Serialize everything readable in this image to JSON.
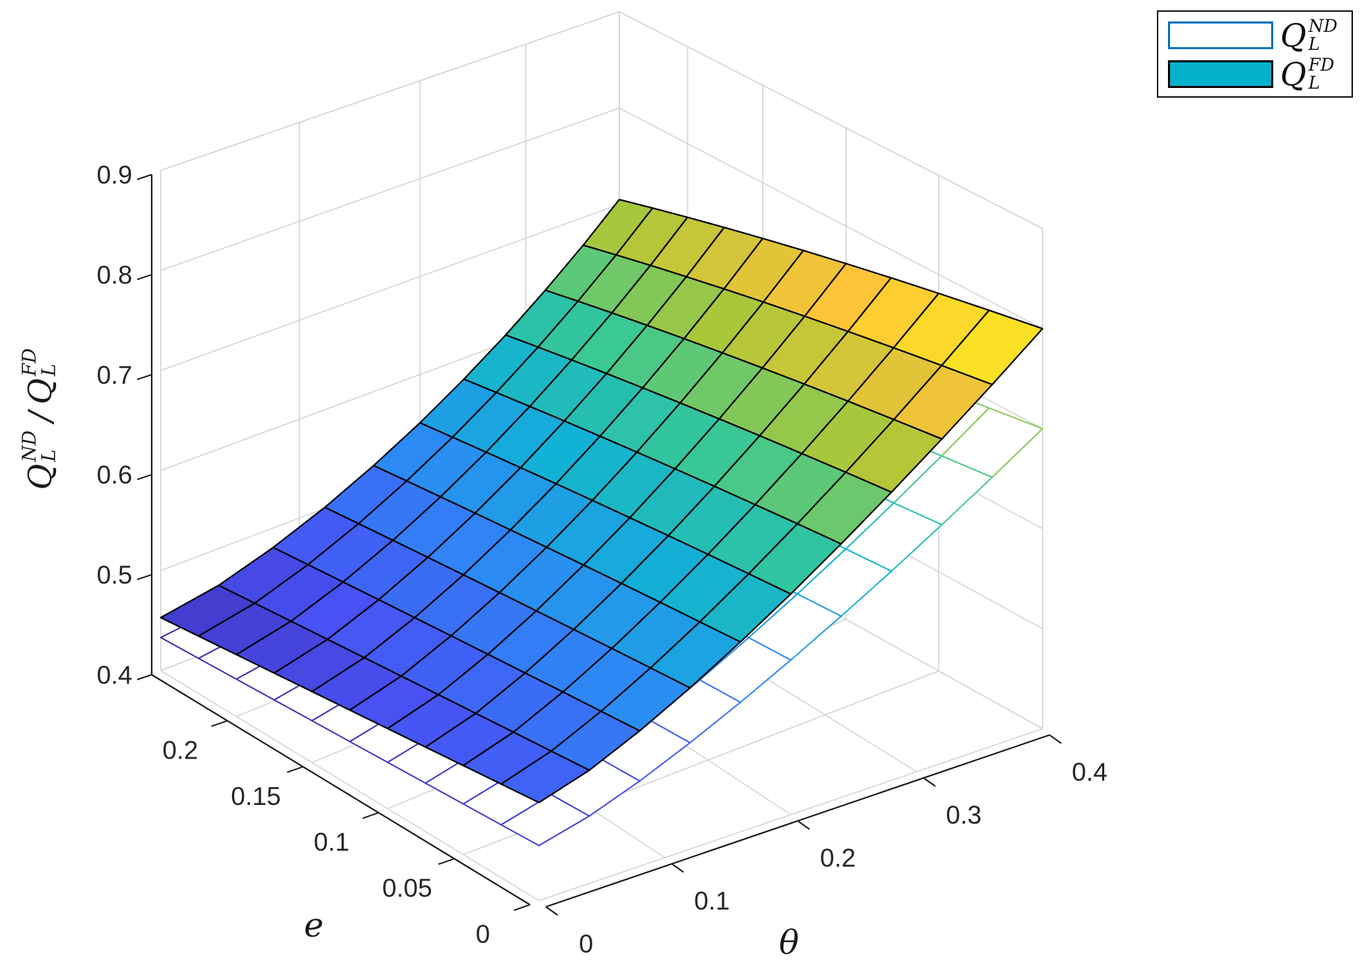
{
  "chart_data": {
    "type": "surface3d",
    "title": "",
    "projection": "3d-perspective",
    "grid_on": true,
    "x_axis": {
      "name": "theta",
      "label": "θ",
      "range": [
        0,
        0.4
      ],
      "tick_values": [
        0,
        0.1,
        0.2,
        0.3,
        0.4
      ],
      "tick_labels": [
        "0",
        "0.1",
        "0.2",
        "0.3",
        "0.4"
      ]
    },
    "y_axis": {
      "name": "e",
      "label": "e",
      "range": [
        0,
        0.25
      ],
      "tick_values": [
        0,
        0.05,
        0.1,
        0.15,
        0.2
      ],
      "tick_labels": [
        "0",
        "0.05",
        "0.1",
        "0.15",
        "0.2"
      ]
    },
    "z_axis": {
      "label": "Q_L^ND / Q_L^FD",
      "range": [
        0.4,
        0.9
      ],
      "tick_values": [
        0.4,
        0.5,
        0.6,
        0.7,
        0.8,
        0.9
      ],
      "tick_labels": [
        "0.4",
        "0.5",
        "0.6",
        "0.7",
        "0.8",
        "0.9"
      ]
    },
    "theta_grid": [
      0,
      0.04,
      0.08,
      0.12,
      0.16,
      0.2,
      0.24,
      0.28,
      0.32,
      0.36,
      0.4
    ],
    "e_grid": [
      0,
      0.025,
      0.05,
      0.075,
      0.1,
      0.125,
      0.15,
      0.175,
      0.2,
      0.225,
      0.25
    ],
    "color_limits": [
      0.433,
      0.8
    ],
    "colormap": {
      "name": "parula",
      "stops": [
        "#3e26a8",
        "#4852f4",
        "#2e87f7",
        "#12b1d6",
        "#37c897",
        "#abc739",
        "#fec338",
        "#f9fb15"
      ]
    },
    "z_value_order": "z[i][j] = value at theta_grid[i], e_grid[j]",
    "series": [
      {
        "name": "Q_L^ND",
        "render": "white-faces-colormap-edges",
        "z": [
          [
            0.455,
            0.4528,
            0.4506,
            0.4484,
            0.4462,
            0.444,
            0.4418,
            0.4396,
            0.4374,
            0.4352,
            0.433
          ],
          [
            0.4673,
            0.4646,
            0.4618,
            0.4591,
            0.4563,
            0.4536,
            0.4508,
            0.4481,
            0.4453,
            0.4426,
            0.4398
          ],
          [
            0.4852,
            0.4819,
            0.4786,
            0.4753,
            0.472,
            0.4687,
            0.4654,
            0.4621,
            0.4588,
            0.4555,
            0.4522
          ],
          [
            0.5062,
            0.5024,
            0.4985,
            0.4947,
            0.4908,
            0.487,
            0.4831,
            0.4793,
            0.4754,
            0.4716,
            0.4677
          ],
          [
            0.5295,
            0.5251,
            0.5207,
            0.5163,
            0.5119,
            0.5075,
            0.5031,
            0.4987,
            0.4943,
            0.4899,
            0.4855
          ],
          [
            0.5545,
            0.5496,
            0.5446,
            0.5397,
            0.5347,
            0.5298,
            0.5248,
            0.5199,
            0.5149,
            0.51,
            0.505
          ],
          [
            0.5812,
            0.5757,
            0.5702,
            0.5647,
            0.5592,
            0.5537,
            0.5482,
            0.5427,
            0.5372,
            0.5317,
            0.5262
          ],
          [
            0.6091,
            0.6031,
            0.597,
            0.591,
            0.5849,
            0.5789,
            0.5728,
            0.5668,
            0.5607,
            0.5547,
            0.5486
          ],
          [
            0.6383,
            0.6317,
            0.6251,
            0.6185,
            0.6119,
            0.6053,
            0.5987,
            0.5921,
            0.5855,
            0.5789,
            0.5723
          ],
          [
            0.6686,
            0.6615,
            0.6543,
            0.6472,
            0.64,
            0.6329,
            0.6257,
            0.6186,
            0.6114,
            0.6043,
            0.5971
          ],
          [
            0.7,
            0.6923,
            0.6846,
            0.6769,
            0.6692,
            0.6615,
            0.6538,
            0.6461,
            0.6384,
            0.6307,
            0.623
          ]
        ]
      },
      {
        "name": "Q_L^FD",
        "render": "colormap-faces-black-edges",
        "z": [
          [
            0.498,
            0.4935,
            0.489,
            0.4845,
            0.48,
            0.4755,
            0.471,
            0.4665,
            0.462,
            0.4575,
            0.453
          ],
          [
            0.5131,
            0.5081,
            0.5031,
            0.4981,
            0.4931,
            0.4881,
            0.4831,
            0.4781,
            0.4731,
            0.4681,
            0.4631
          ],
          [
            0.5353,
            0.5298,
            0.5243,
            0.5188,
            0.5133,
            0.5078,
            0.5023,
            0.4968,
            0.4913,
            0.4858,
            0.4803
          ],
          [
            0.5611,
            0.5551,
            0.5491,
            0.5431,
            0.5371,
            0.5311,
            0.5251,
            0.5191,
            0.5131,
            0.5071,
            0.5011
          ],
          [
            0.5898,
            0.5833,
            0.5768,
            0.5703,
            0.5638,
            0.5573,
            0.5508,
            0.5443,
            0.5378,
            0.5313,
            0.5248
          ],
          [
            0.6206,
            0.6136,
            0.6066,
            0.5996,
            0.5926,
            0.5856,
            0.5786,
            0.5716,
            0.5646,
            0.5576,
            0.5506
          ],
          [
            0.6535,
            0.646,
            0.6385,
            0.631,
            0.6235,
            0.616,
            0.6085,
            0.601,
            0.5935,
            0.586,
            0.5785
          ],
          [
            0.688,
            0.68,
            0.672,
            0.664,
            0.656,
            0.648,
            0.64,
            0.632,
            0.624,
            0.616,
            0.608
          ],
          [
            0.724,
            0.7155,
            0.707,
            0.6985,
            0.69,
            0.6815,
            0.673,
            0.6645,
            0.656,
            0.6475,
            0.639
          ],
          [
            0.7613,
            0.7523,
            0.7433,
            0.7343,
            0.7253,
            0.7163,
            0.7073,
            0.6983,
            0.6893,
            0.6803,
            0.6713
          ],
          [
            0.8,
            0.7905,
            0.781,
            0.7715,
            0.762,
            0.7525,
            0.743,
            0.7335,
            0.724,
            0.7145,
            0.705
          ]
        ]
      }
    ]
  },
  "legend": {
    "items": [
      {
        "base": "Q",
        "sup": "ND",
        "sub": "L",
        "swatch_fill": "#ffffff",
        "swatch_border": "#0072bd"
      },
      {
        "base": "Q",
        "sup": "FD",
        "sub": "L",
        "swatch_fill": "#06b1cd",
        "swatch_border": "#000000"
      }
    ]
  },
  "zlabel": {
    "num": {
      "base": "Q",
      "sup": "ND",
      "sub": "L"
    },
    "slash": "/",
    "den": {
      "base": "Q",
      "sup": "FD",
      "sub": "L"
    }
  }
}
